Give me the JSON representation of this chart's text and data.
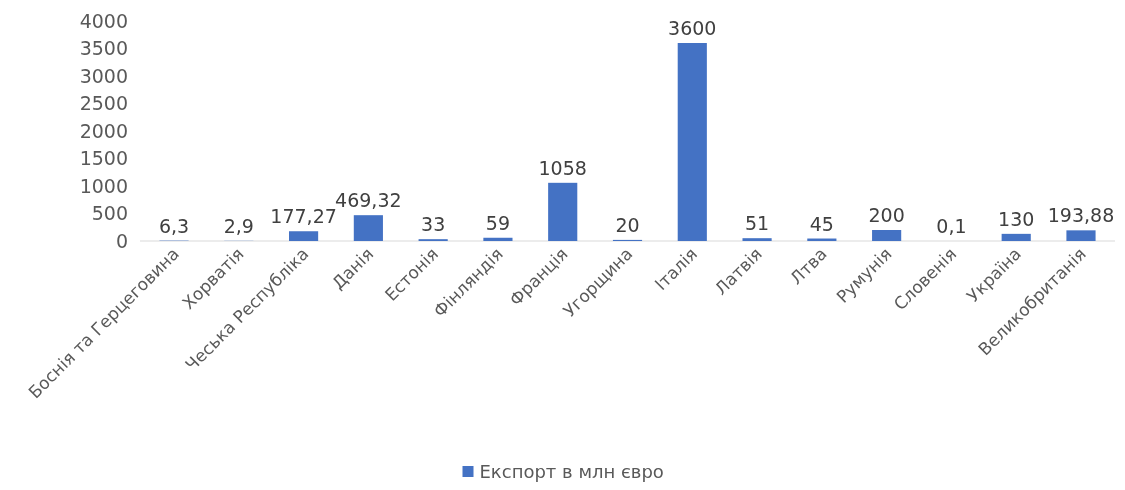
{
  "chart_data": {
    "type": "bar",
    "categories": [
      "Боснія та Герцеговина",
      "Хорватія",
      "Чеська Республіка",
      "Данія",
      "Естонія",
      "Фінляндія",
      "Франція",
      "Угорщина",
      "Італія",
      "Латвія",
      "Лтва",
      "Румунія",
      "Словенія",
      "Україна",
      "Великобританія"
    ],
    "series": [
      {
        "name": "Експорт в млн євро",
        "color": "#4472c4",
        "values": [
          6.3,
          2.9,
          177.27,
          469.32,
          33,
          59,
          1058,
          20,
          3600,
          51,
          45,
          200,
          0.1,
          130,
          193.88
        ],
        "value_labels": [
          "6,3",
          "2,9",
          "177,27",
          "469,32",
          "33",
          "59",
          "1058",
          "20",
          "3600",
          "51",
          "45",
          "200",
          "0,1",
          "130",
          "193,88"
        ]
      }
    ],
    "ylim": [
      0,
      4000
    ],
    "yticks": [
      0,
      500,
      1000,
      1500,
      2000,
      2500,
      3000,
      3500,
      4000
    ],
    "grid": false,
    "legend": "bottom"
  }
}
